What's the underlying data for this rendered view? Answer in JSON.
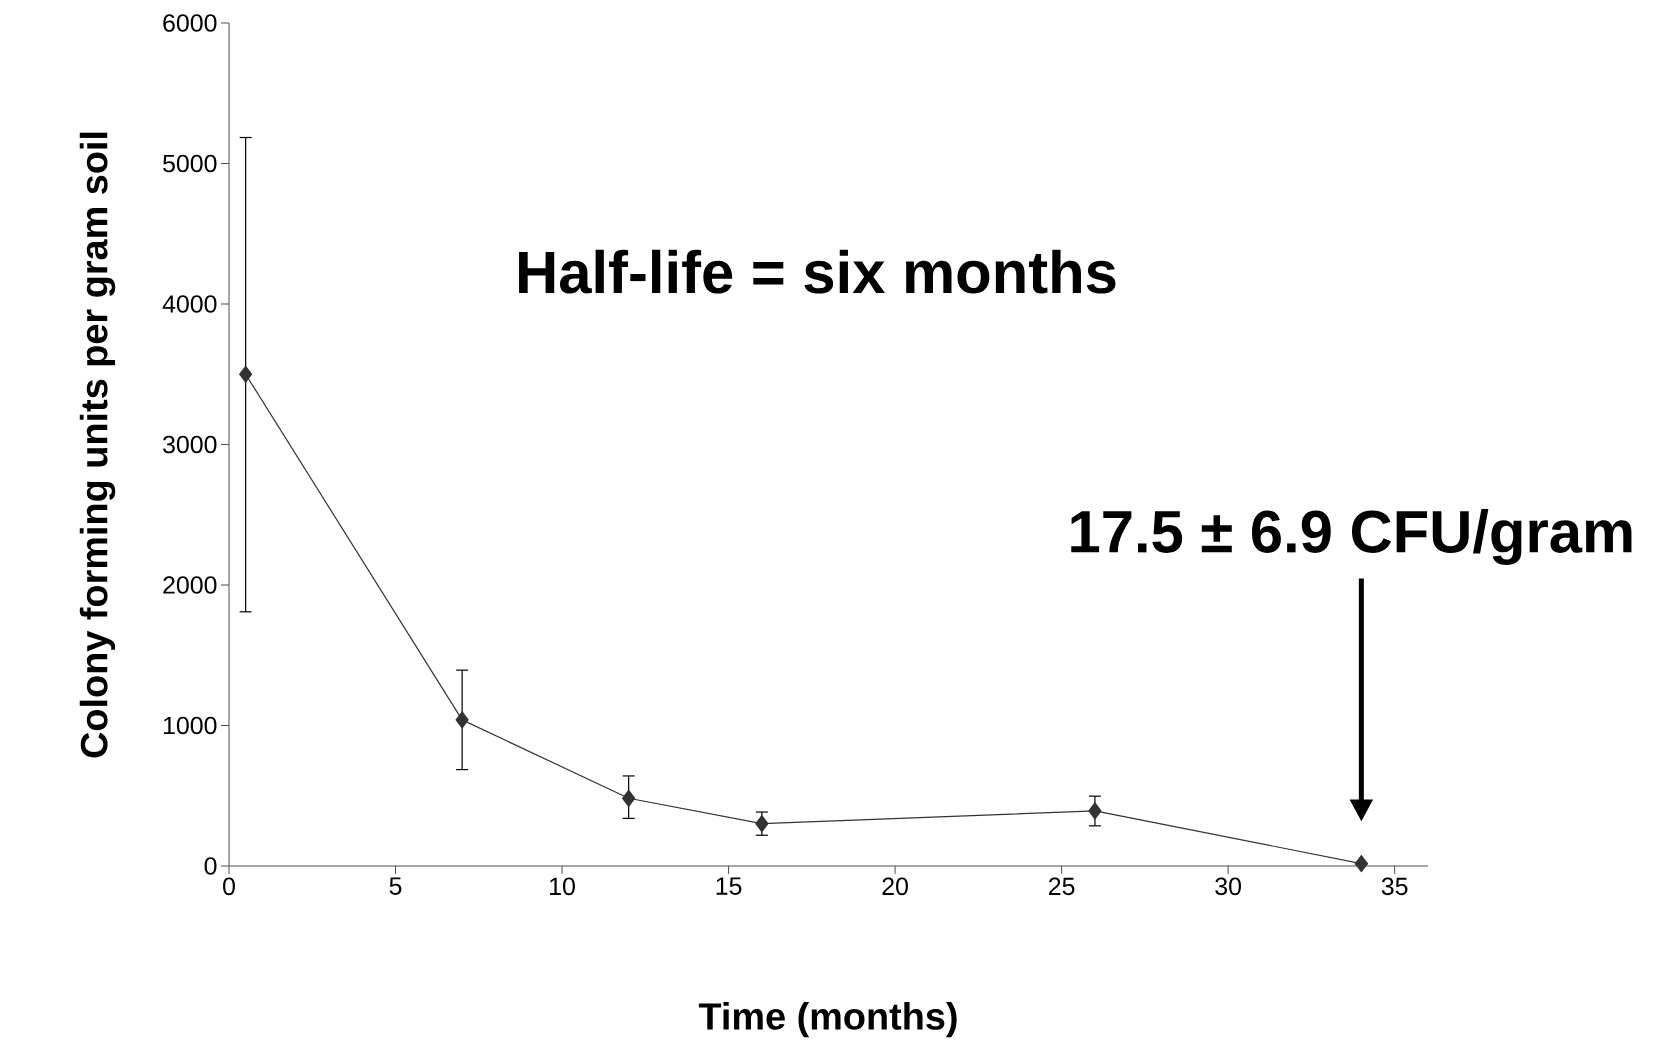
{
  "chart_data": {
    "type": "line",
    "xlabel": "Time (months)",
    "ylabel": "Colony forming units per gram soil",
    "x": [
      0.5,
      7,
      12,
      16,
      26,
      34
    ],
    "series": [
      {
        "color": "#333333",
        "values": [
          3500,
          1040,
          482,
          301,
          392,
          17.5
        ],
        "errors": [
          [
            1809,
            5185
          ],
          [
            686,
            1394
          ],
          [
            339,
            641
          ],
          [
            219,
            384
          ],
          [
            286,
            497
          ],
          6.9
        ]
      }
    ],
    "xlim": [
      0,
      36
    ],
    "xticks": [
      0,
      5,
      10,
      15,
      20,
      25,
      30,
      35
    ],
    "ylim": [
      0,
      6000
    ],
    "yticks": [
      0,
      1000,
      2000,
      3000,
      4000,
      5000,
      6000
    ],
    "marker": "diamond",
    "line_style": "solid",
    "grid": false,
    "annotations": [
      "Half-life = six months",
      "17.5 ± 6.9 CFU/gram"
    ]
  }
}
